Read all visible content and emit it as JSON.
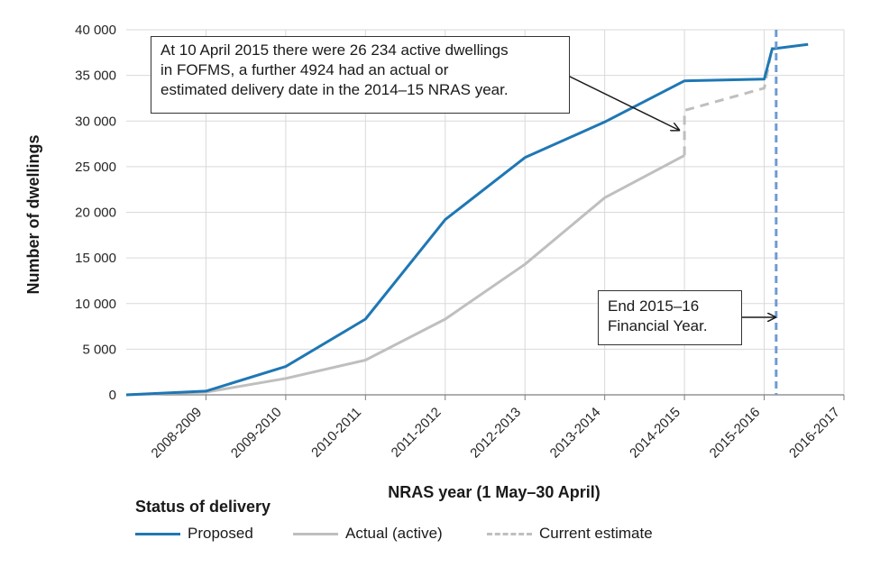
{
  "chart_data": {
    "type": "line",
    "title": "",
    "xlabel": "NRAS year (1 May–30 April)",
    "ylabel": "Number of dwellings",
    "ylim": [
      0,
      40000
    ],
    "yticks": [
      0,
      5000,
      10000,
      15000,
      20000,
      25000,
      30000,
      35000,
      40000
    ],
    "ytick_labels": [
      "0",
      "5 000",
      "10 000",
      "15 000",
      "20 000",
      "25 000",
      "30 000",
      "35 000",
      "40 000"
    ],
    "categories": [
      "2008-2009",
      "2009-2010",
      "2010-2011",
      "2011-2012",
      "2012-2013",
      "2013-2014",
      "2014-2015",
      "2015-2016",
      "2016-2017"
    ],
    "grid": true,
    "legend_title": "Status of delivery",
    "legend_placement": "bottom",
    "series": [
      {
        "name": "Proposed",
        "color": "#1f77b4",
        "style": "solid",
        "x": [
          -1,
          0,
          1,
          2,
          3,
          4,
          5,
          6,
          7,
          7.1,
          7.55
        ],
        "values": [
          0,
          400,
          3100,
          8300,
          19200,
          26000,
          29900,
          34400,
          34600,
          37900,
          38400
        ]
      },
      {
        "name": "Actual (active)",
        "color": "#bfbfbf",
        "style": "solid",
        "x": [
          -1,
          0,
          1,
          2,
          3,
          4,
          5,
          6
        ],
        "values": [
          0,
          300,
          1800,
          3800,
          8300,
          14300,
          21600,
          26234
        ]
      },
      {
        "name": "Current estimate",
        "color": "#bfbfbf",
        "style": "dashed",
        "x": [
          6,
          6,
          7,
          7.1
        ],
        "values": [
          26234,
          31158,
          33600,
          38100
        ]
      }
    ],
    "reference_line": {
      "x": 7.15,
      "color": "#6f9bd1",
      "style": "dashed"
    },
    "annotations": [
      {
        "text_lines": [
          "At 10 April 2015 there were 26 234 active dwellings",
          "in FOFMS, a further 4924 had an actual  or",
          "estimated  delivery date in the 2014–15 NRAS year."
        ],
        "arrow_to": [
          6,
          29000
        ]
      },
      {
        "text_lines": [
          "End 2015–16",
          "Financial Year."
        ],
        "arrow_to": [
          7.15,
          8500
        ]
      }
    ]
  }
}
